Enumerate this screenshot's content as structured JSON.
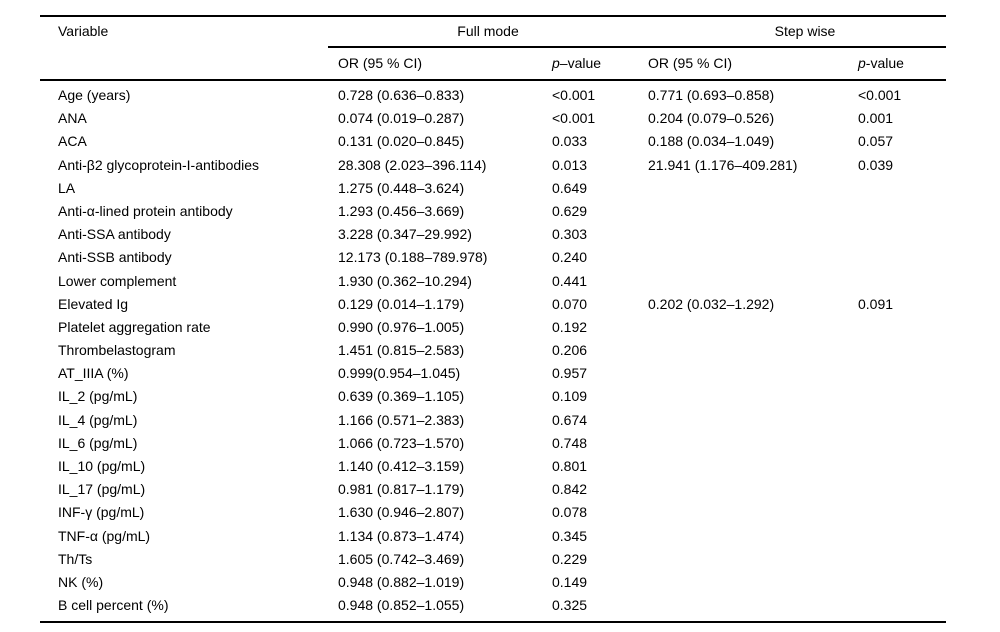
{
  "table": {
    "headers": {
      "variable": "Variable",
      "full_mode": "Full mode",
      "step_wise": "Step wise",
      "or_ci_full": "OR (95 % CI)",
      "p_full_italic": "p",
      "p_full_rest": "–value",
      "or_ci_step": "OR (95 % CI)",
      "p_step_italic": "p",
      "p_step_rest": "-value"
    },
    "rows": [
      {
        "variable": "Age (years)",
        "full_or": "0.728 (0.636–0.833)",
        "full_p": "<0.001",
        "step_or": "0.771 (0.693–0.858)",
        "step_p": "<0.001"
      },
      {
        "variable": "ANA",
        "full_or": "0.074 (0.019–0.287)",
        "full_p": "<0.001",
        "step_or": "0.204 (0.079–0.526)",
        "step_p": "0.001"
      },
      {
        "variable": "ACA",
        "full_or": "0.131 (0.020–0.845)",
        "full_p": "0.033",
        "step_or": "0.188 (0.034–1.049)",
        "step_p": "0.057"
      },
      {
        "variable": "Anti-β2 glycoprotein-I-antibodies",
        "full_or": "28.308 (2.023–396.114)",
        "full_p": "0.013",
        "step_or": "21.941 (1.176–409.281)",
        "step_p": "0.039"
      },
      {
        "variable": "LA",
        "full_or": "1.275 (0.448–3.624)",
        "full_p": "0.649",
        "step_or": "",
        "step_p": ""
      },
      {
        "variable": "Anti-α-lined protein antibody",
        "full_or": "1.293 (0.456–3.669)",
        "full_p": "0.629",
        "step_or": "",
        "step_p": ""
      },
      {
        "variable": "Anti-SSA antibody",
        "full_or": "3.228 (0.347–29.992)",
        "full_p": "0.303",
        "step_or": "",
        "step_p": ""
      },
      {
        "variable": "Anti-SSB antibody",
        "full_or": "12.173 (0.188–789.978)",
        "full_p": "0.240",
        "step_or": "",
        "step_p": ""
      },
      {
        "variable": "Lower complement",
        "full_or": "1.930 (0.362–10.294)",
        "full_p": "0.441",
        "step_or": "",
        "step_p": ""
      },
      {
        "variable": "Elevated Ig",
        "full_or": "0.129 (0.014–1.179)",
        "full_p": "0.070",
        "step_or": "0.202 (0.032–1.292)",
        "step_p": "0.091"
      },
      {
        "variable": "Platelet aggregation rate",
        "full_or": "0.990 (0.976–1.005)",
        "full_p": "0.192",
        "step_or": "",
        "step_p": ""
      },
      {
        "variable": "Thrombelastogram",
        "full_or": "1.451 (0.815–2.583)",
        "full_p": "0.206",
        "step_or": "",
        "step_p": ""
      },
      {
        "variable": "AT_IIIA (%)",
        "full_or": "0.999(0.954–1.045)",
        "full_p": "0.957",
        "step_or": "",
        "step_p": ""
      },
      {
        "variable": "IL_2 (pg/mL)",
        "full_or": "0.639 (0.369–1.105)",
        "full_p": "0.109",
        "step_or": "",
        "step_p": ""
      },
      {
        "variable": "IL_4 (pg/mL)",
        "full_or": "1.166 (0.571–2.383)",
        "full_p": "0.674",
        "step_or": "",
        "step_p": ""
      },
      {
        "variable": "IL_6 (pg/mL)",
        "full_or": "1.066 (0.723–1.570)",
        "full_p": "0.748",
        "step_or": "",
        "step_p": ""
      },
      {
        "variable": "IL_10 (pg/mL)",
        "full_or": "1.140 (0.412–3.159)",
        "full_p": "0.801",
        "step_or": "",
        "step_p": ""
      },
      {
        "variable": "IL_17 (pg/mL)",
        "full_or": "0.981 (0.817–1.179)",
        "full_p": "0.842",
        "step_or": "",
        "step_p": ""
      },
      {
        "variable": "INF-γ (pg/mL)",
        "full_or": "1.630 (0.946–2.807)",
        "full_p": "0.078",
        "step_or": "",
        "step_p": ""
      },
      {
        "variable": "TNF-α (pg/mL)",
        "full_or": "1.134 (0.873–1.474)",
        "full_p": "0.345",
        "step_or": "",
        "step_p": ""
      },
      {
        "variable": "Th/Ts",
        "full_or": "1.605 (0.742–3.469)",
        "full_p": "0.229",
        "step_or": "",
        "step_p": ""
      },
      {
        "variable": "NK (%)",
        "full_or": "0.948 (0.882–1.019)",
        "full_p": "0.149",
        "step_or": "",
        "step_p": ""
      },
      {
        "variable": "B cell percent (%)",
        "full_or": "0.948 (0.852–1.055)",
        "full_p": "0.325",
        "step_or": "",
        "step_p": ""
      }
    ]
  }
}
